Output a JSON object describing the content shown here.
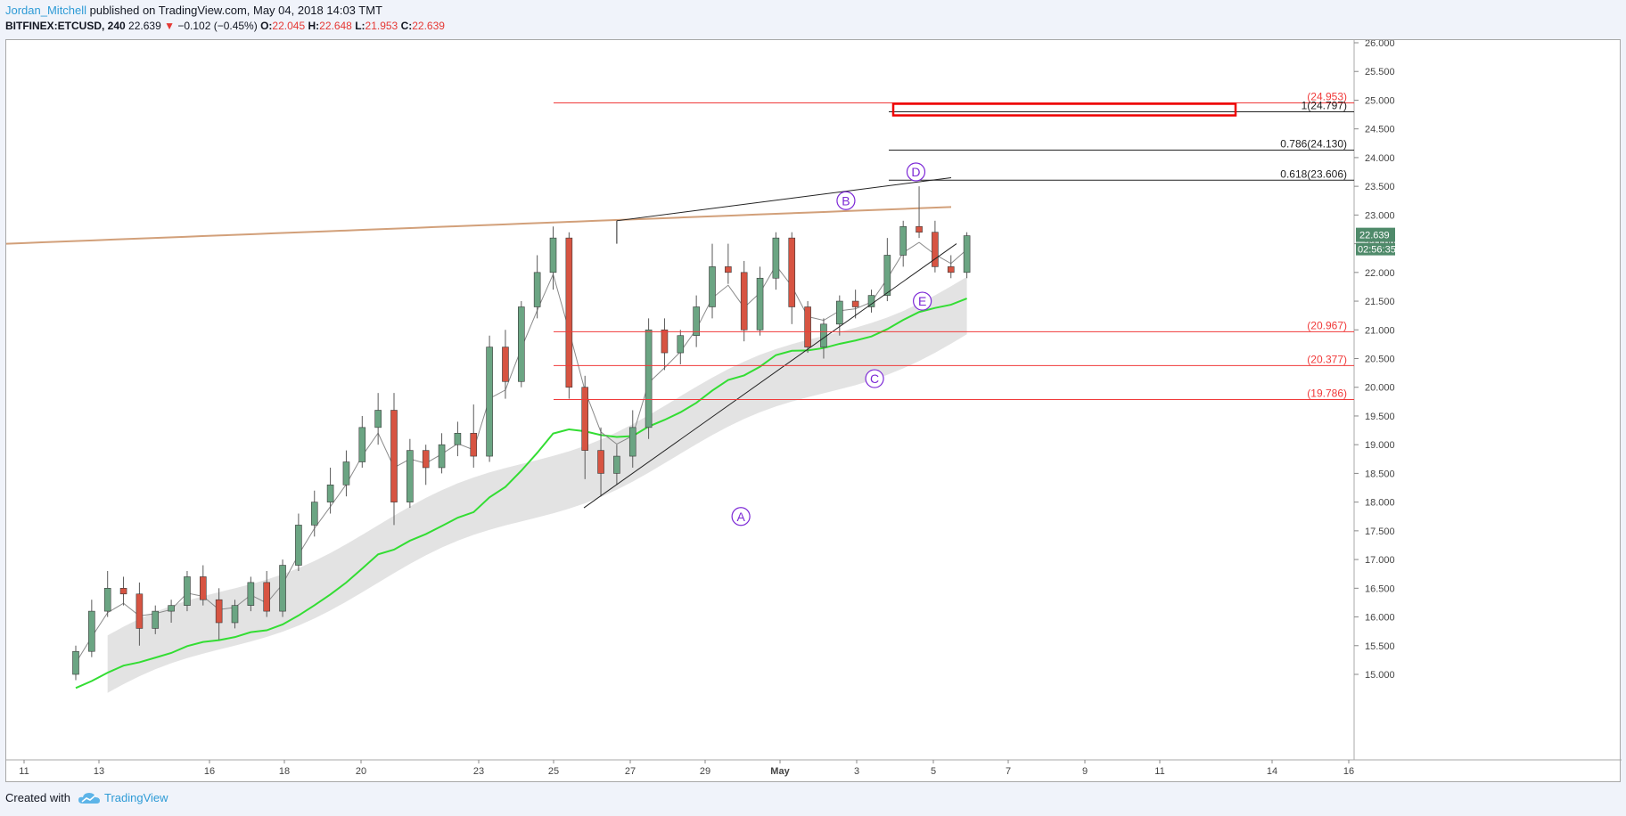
{
  "header": {
    "author": "Jordan_Mitchell",
    "published_text": "published on TradingView.com, May 04, 2018 14:03 TMT",
    "symbol": "BITFINEX:ETCUSD, 240",
    "last": "22.639",
    "change_arrow": "▼",
    "change": "−0.102 (−0.45%)",
    "o_label": "O:",
    "o_value": "22.045",
    "h_label": "H:",
    "h_value": "22.648",
    "l_label": "L:",
    "l_value": "21.953",
    "c_label": "C:",
    "c_value": "22.639"
  },
  "footer": {
    "created_with": "Created with",
    "brand": "TradingView"
  },
  "colors": {
    "up": "#6ba583",
    "down": "#d75442",
    "ema_green": "#33dd33",
    "ema_brown": "#d2a07a",
    "fib_red": "#f03a3a",
    "label_purple": "#7c28d6",
    "price_badge": "#4f8a6a"
  },
  "chart_data": {
    "type": "candlestick",
    "symbol": "BITFINEX:ETCUSD",
    "timeframe": "240",
    "ylim": [
      14.6,
      26.1
    ],
    "y_ticks": [
      "15.000",
      "15.500",
      "16.000",
      "16.500",
      "17.000",
      "17.500",
      "18.000",
      "18.500",
      "19.000",
      "19.500",
      "20.000",
      "20.500",
      "21.000",
      "21.500",
      "22.000",
      "22.500",
      "23.000",
      "23.500",
      "24.000",
      "24.500",
      "25.000",
      "25.500",
      "26.000"
    ],
    "x_ticks": [
      "11",
      "13",
      "16",
      "18",
      "20",
      "23",
      "25",
      "27",
      "29",
      "May",
      "3",
      "5",
      "7",
      "9",
      "11",
      "14",
      "16"
    ],
    "current_price": "22.639",
    "countdown": "02:56:35",
    "horizontal_levels": [
      {
        "label": "(24.953)",
        "value": 24.953,
        "color": "red"
      },
      {
        "label": "1(24.797)",
        "value": 24.797,
        "color": "black"
      },
      {
        "label": "0.786(24.130)",
        "value": 24.13,
        "color": "black"
      },
      {
        "label": "0.618(23.606)",
        "value": 23.606,
        "color": "black"
      },
      {
        "label": "(20.967)",
        "value": 20.967,
        "color": "red"
      },
      {
        "label": "(20.377)",
        "value": 20.377,
        "color": "red"
      },
      {
        "label": "(19.786)",
        "value": 19.786,
        "color": "red"
      }
    ],
    "wave_labels": [
      {
        "label": "A",
        "date_index": 42.8,
        "value": 17.75
      },
      {
        "label": "B",
        "date_index": 49.4,
        "value": 23.25
      },
      {
        "label": "C",
        "date_index": 51.2,
        "value": 20.15
      },
      {
        "label": "D",
        "date_index": 53.8,
        "value": 23.75
      },
      {
        "label": "E",
        "date_index": 54.2,
        "value": 21.5
      }
    ],
    "candles": [
      [
        15.0,
        15.5,
        14.9,
        15.4
      ],
      [
        15.4,
        16.3,
        15.3,
        16.1
      ],
      [
        16.1,
        16.8,
        16.0,
        16.5
      ],
      [
        16.5,
        16.7,
        16.2,
        16.4
      ],
      [
        16.4,
        16.6,
        15.5,
        15.8
      ],
      [
        15.8,
        16.2,
        15.7,
        16.1
      ],
      [
        16.1,
        16.3,
        15.9,
        16.2
      ],
      [
        16.2,
        16.8,
        16.1,
        16.7
      ],
      [
        16.7,
        16.9,
        16.2,
        16.3
      ],
      [
        16.3,
        16.5,
        15.6,
        15.9
      ],
      [
        15.9,
        16.3,
        15.8,
        16.2
      ],
      [
        16.2,
        16.7,
        16.1,
        16.6
      ],
      [
        16.6,
        16.8,
        16.0,
        16.1
      ],
      [
        16.1,
        17.0,
        16.0,
        16.9
      ],
      [
        16.9,
        17.8,
        16.8,
        17.6
      ],
      [
        17.6,
        18.2,
        17.4,
        18.0
      ],
      [
        18.0,
        18.6,
        17.8,
        18.3
      ],
      [
        18.3,
        18.9,
        18.1,
        18.7
      ],
      [
        18.7,
        19.5,
        18.6,
        19.3
      ],
      [
        19.3,
        19.9,
        19.0,
        19.6
      ],
      [
        19.6,
        19.9,
        17.6,
        18.0
      ],
      [
        18.0,
        19.1,
        17.9,
        18.9
      ],
      [
        18.9,
        19.0,
        18.3,
        18.6
      ],
      [
        18.6,
        19.2,
        18.5,
        19.0
      ],
      [
        19.0,
        19.4,
        18.8,
        19.2
      ],
      [
        19.2,
        19.7,
        18.6,
        18.8
      ],
      [
        18.8,
        20.9,
        18.7,
        20.7
      ],
      [
        20.7,
        21.0,
        19.8,
        20.1
      ],
      [
        20.1,
        21.5,
        20.0,
        21.4
      ],
      [
        21.4,
        22.3,
        21.2,
        22.0
      ],
      [
        22.0,
        22.8,
        21.7,
        22.6
      ],
      [
        22.6,
        22.7,
        19.8,
        20.0
      ],
      [
        20.0,
        20.2,
        18.4,
        18.9
      ],
      [
        18.9,
        19.3,
        18.1,
        18.5
      ],
      [
        18.5,
        19.0,
        18.3,
        18.8
      ],
      [
        18.8,
        19.6,
        18.6,
        19.3
      ],
      [
        19.3,
        21.2,
        19.1,
        21.0
      ],
      [
        21.0,
        21.2,
        20.3,
        20.6
      ],
      [
        20.6,
        21.0,
        20.4,
        20.9
      ],
      [
        20.9,
        21.6,
        20.7,
        21.4
      ],
      [
        21.4,
        22.5,
        21.2,
        22.1
      ],
      [
        22.1,
        22.5,
        21.8,
        22.0
      ],
      [
        22.0,
        22.2,
        20.8,
        21.0
      ],
      [
        21.0,
        22.1,
        20.9,
        21.9
      ],
      [
        21.9,
        22.7,
        21.7,
        22.6
      ],
      [
        22.6,
        22.7,
        21.1,
        21.4
      ],
      [
        21.4,
        21.5,
        20.6,
        20.7
      ],
      [
        20.7,
        21.2,
        20.5,
        21.1
      ],
      [
        21.1,
        21.6,
        20.9,
        21.5
      ],
      [
        21.5,
        21.7,
        21.2,
        21.4
      ],
      [
        21.4,
        21.7,
        21.3,
        21.6
      ],
      [
        21.6,
        22.6,
        21.5,
        22.3
      ],
      [
        22.3,
        22.9,
        22.1,
        22.8
      ],
      [
        22.8,
        23.5,
        22.6,
        22.7
      ],
      [
        22.7,
        22.9,
        22.0,
        22.1
      ],
      [
        22.1,
        22.3,
        21.9,
        22.0
      ],
      [
        22.0,
        22.7,
        21.9,
        22.64
      ]
    ]
  }
}
